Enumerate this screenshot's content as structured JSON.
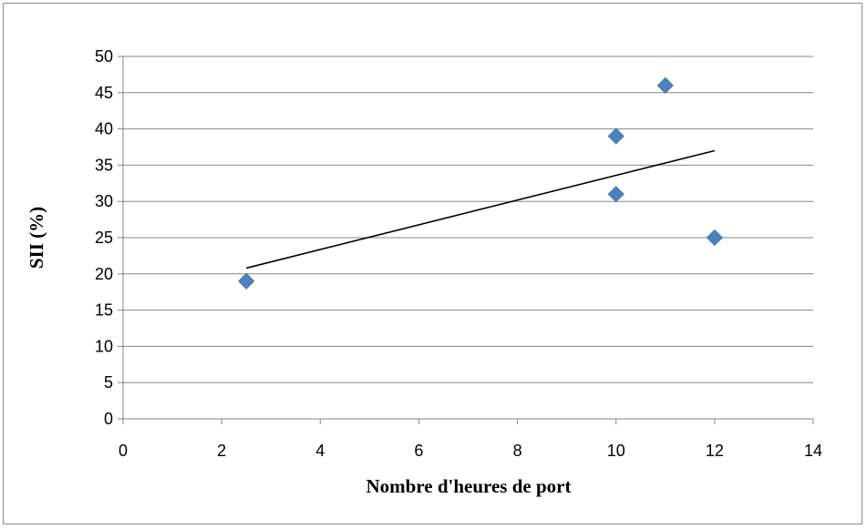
{
  "chart_data": {
    "type": "scatter",
    "title": "",
    "xlabel": "Nombre d'heures de port",
    "ylabel": "SII (%)",
    "xlim": [
      0,
      14
    ],
    "ylim": [
      0,
      50
    ],
    "x_ticks": [
      0,
      2,
      4,
      6,
      8,
      10,
      12,
      14
    ],
    "y_ticks": [
      0,
      5,
      10,
      15,
      20,
      25,
      30,
      35,
      40,
      45,
      50
    ],
    "grid": "horizontal",
    "legend": "none",
    "series": [
      {
        "x": [
          2.5,
          10,
          10,
          11,
          12
        ],
        "y": [
          19,
          31,
          39,
          46,
          25
        ],
        "marker": "diamond",
        "color": "#4f81bd"
      }
    ],
    "trendline": {
      "type": "linear",
      "x": [
        2.5,
        12
      ],
      "y": [
        20.8,
        37.0
      ],
      "color": "#000000"
    }
  }
}
